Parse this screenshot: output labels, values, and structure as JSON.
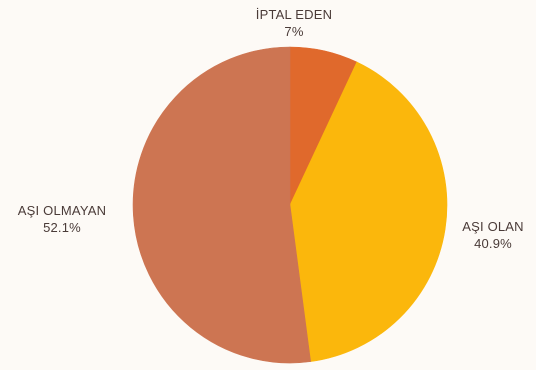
{
  "chart_data": {
    "type": "pie",
    "title": "",
    "unit": "%",
    "slices": [
      {
        "label": "İPTAL EDEN",
        "value": 7,
        "value_label": "7%",
        "color": "#e0692c"
      },
      {
        "label": "AŞI OLAN",
        "value": 40.9,
        "value_label": "40.9%",
        "color": "#fbb70c"
      },
      {
        "label": "AŞI OLMAYAN",
        "value": 52.1,
        "value_label": "52.1%",
        "color": "#cd7552"
      }
    ],
    "start_angle_deg": 0,
    "direction": "clockwise",
    "legend": "none"
  }
}
